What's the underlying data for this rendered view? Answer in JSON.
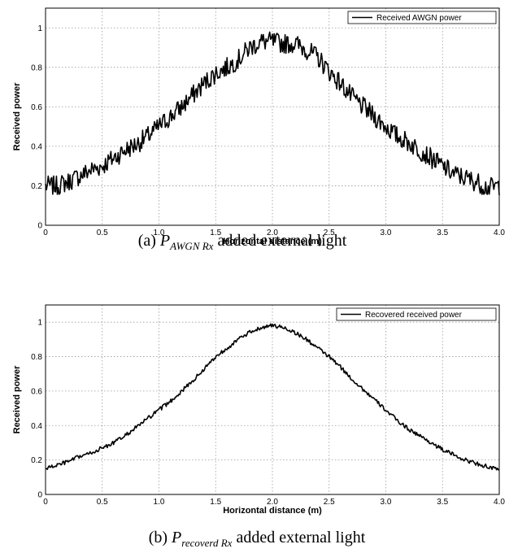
{
  "chart_data": [
    {
      "type": "line",
      "xlabel": "Horizontal distance (m)",
      "ylabel": "Received power",
      "xlim": [
        0,
        4.0
      ],
      "ylim": [
        0,
        1.1
      ],
      "grid": true,
      "legend_position": "top-right",
      "x_ticks": [
        "0",
        "0.5",
        "1.0",
        "1.5",
        "2.0",
        "2.5",
        "3.0",
        "3.5",
        "4.0"
      ],
      "y_ticks": [
        "0",
        "0.2",
        "0.4",
        "0.6",
        "0.8",
        "1"
      ],
      "series": [
        {
          "name": "Received AWGN power",
          "x": [
            0,
            0.1,
            0.2,
            0.3,
            0.4,
            0.5,
            0.6,
            0.7,
            0.8,
            0.9,
            1.0,
            1.1,
            1.2,
            1.3,
            1.4,
            1.5,
            1.6,
            1.7,
            1.8,
            1.9,
            2.0,
            2.1,
            2.2,
            2.3,
            2.4,
            2.5,
            2.6,
            2.7,
            2.8,
            2.9,
            3.0,
            3.1,
            3.2,
            3.3,
            3.4,
            3.5,
            3.6,
            3.7,
            3.8,
            3.9,
            4.0
          ],
          "y": [
            0.2,
            0.2,
            0.22,
            0.25,
            0.28,
            0.3,
            0.34,
            0.38,
            0.41,
            0.45,
            0.5,
            0.55,
            0.6,
            0.66,
            0.72,
            0.77,
            0.8,
            0.84,
            0.9,
            0.93,
            0.93,
            0.92,
            0.92,
            0.89,
            0.85,
            0.78,
            0.72,
            0.65,
            0.6,
            0.55,
            0.5,
            0.45,
            0.42,
            0.38,
            0.34,
            0.3,
            0.26,
            0.24,
            0.22,
            0.19,
            0.2
          ],
          "noise": 0.05
        }
      ]
    },
    {
      "type": "line",
      "xlabel": "Horizontal distance (m)",
      "ylabel": "Received power",
      "xlim": [
        0,
        4.0
      ],
      "ylim": [
        0,
        1.1
      ],
      "grid": true,
      "legend_position": "top-right",
      "x_ticks": [
        "0",
        "0.5",
        "1.0",
        "1.5",
        "2.0",
        "2.5",
        "3.0",
        "3.5",
        "4.0"
      ],
      "y_ticks": [
        "0",
        "0.2",
        "0.4",
        "0.6",
        "0.8",
        "1"
      ],
      "series": [
        {
          "name": "Recovered received power",
          "x": [
            0,
            0.1,
            0.2,
            0.3,
            0.4,
            0.5,
            0.6,
            0.7,
            0.8,
            0.9,
            1.0,
            1.1,
            1.2,
            1.3,
            1.4,
            1.5,
            1.6,
            1.7,
            1.8,
            1.9,
            2.0,
            2.1,
            2.2,
            2.3,
            2.4,
            2.5,
            2.6,
            2.7,
            2.8,
            2.9,
            3.0,
            3.1,
            3.2,
            3.3,
            3.4,
            3.5,
            3.6,
            3.7,
            3.8,
            3.9,
            4.0
          ],
          "y": [
            0.15,
            0.17,
            0.19,
            0.22,
            0.24,
            0.27,
            0.3,
            0.34,
            0.39,
            0.44,
            0.49,
            0.54,
            0.6,
            0.66,
            0.73,
            0.8,
            0.85,
            0.9,
            0.94,
            0.97,
            0.98,
            0.97,
            0.94,
            0.9,
            0.85,
            0.8,
            0.74,
            0.67,
            0.61,
            0.55,
            0.49,
            0.43,
            0.38,
            0.34,
            0.3,
            0.26,
            0.23,
            0.2,
            0.18,
            0.16,
            0.14
          ],
          "noise": 0.012
        }
      ]
    }
  ],
  "captions": [
    {
      "prefix": "(a)",
      "symbol": "P",
      "subscript": "AWGN Rx",
      "suffix": "added external light"
    },
    {
      "prefix": "(b)",
      "symbol": "P",
      "subscript": "recoverd Rx",
      "suffix": "added external light"
    }
  ]
}
